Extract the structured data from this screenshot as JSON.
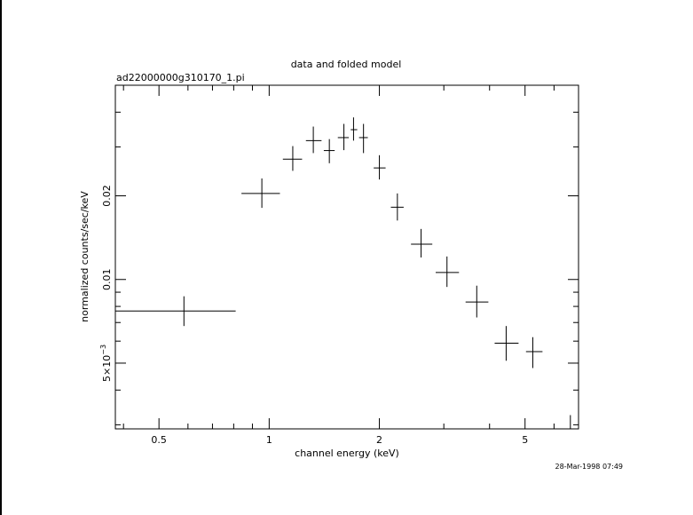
{
  "chart_data": {
    "type": "scatter",
    "title": "data and folded model",
    "subtitle": "ad22000000g310170_1.pi",
    "xlabel": "channel energy (keV)",
    "ylabel": "normalized counts/sec/keV",
    "x_scale": "log",
    "y_scale": "log",
    "xlim": [
      0.38,
      7.0
    ],
    "ylim": [
      0.0029,
      0.05
    ],
    "x_ticks": [
      {
        "value": 0.5,
        "label": "0.5"
      },
      {
        "value": 1,
        "label": "1"
      },
      {
        "value": 2,
        "label": "2"
      },
      {
        "value": 5,
        "label": "5"
      }
    ],
    "y_ticks": [
      {
        "value": 0.005,
        "label_base": "5×10",
        "label_exp": "−3"
      },
      {
        "value": 0.01,
        "label": "0.01"
      },
      {
        "value": 0.02,
        "label": "0.02"
      }
    ],
    "grid": false,
    "legend": "none",
    "series": [
      {
        "points": [
          {
            "x": 0.585,
            "xlo": 0.38,
            "xhi": 0.81,
            "y": 0.0077,
            "ylo": 0.0068,
            "yhi": 0.0087
          },
          {
            "x": 0.955,
            "xlo": 0.84,
            "xhi": 1.07,
            "y": 0.0204,
            "ylo": 0.0181,
            "yhi": 0.0231
          },
          {
            "x": 1.16,
            "xlo": 1.09,
            "xhi": 1.23,
            "y": 0.0271,
            "ylo": 0.0246,
            "yhi": 0.0302
          },
          {
            "x": 1.32,
            "xlo": 1.26,
            "xhi": 1.39,
            "y": 0.0316,
            "ylo": 0.0285,
            "yhi": 0.0355
          },
          {
            "x": 1.46,
            "xlo": 1.41,
            "xhi": 1.51,
            "y": 0.0291,
            "ylo": 0.0262,
            "yhi": 0.032
          },
          {
            "x": 1.6,
            "xlo": 1.54,
            "xhi": 1.65,
            "y": 0.0324,
            "ylo": 0.0292,
            "yhi": 0.0363
          },
          {
            "x": 1.7,
            "xlo": 1.67,
            "xhi": 1.74,
            "y": 0.0346,
            "ylo": 0.0316,
            "yhi": 0.0383
          },
          {
            "x": 1.81,
            "xlo": 1.76,
            "xhi": 1.86,
            "y": 0.0324,
            "ylo": 0.0285,
            "yhi": 0.0363
          },
          {
            "x": 2.0,
            "xlo": 1.93,
            "xhi": 2.08,
            "y": 0.0252,
            "ylo": 0.0229,
            "yhi": 0.028
          },
          {
            "x": 2.24,
            "xlo": 2.15,
            "xhi": 2.33,
            "y": 0.0182,
            "ylo": 0.0163,
            "yhi": 0.0204
          },
          {
            "x": 2.6,
            "xlo": 2.44,
            "xhi": 2.79,
            "y": 0.0134,
            "ylo": 0.012,
            "yhi": 0.0152
          },
          {
            "x": 3.06,
            "xlo": 2.85,
            "xhi": 3.3,
            "y": 0.0106,
            "ylo": 0.0094,
            "yhi": 0.0121
          },
          {
            "x": 3.69,
            "xlo": 3.44,
            "xhi": 3.97,
            "y": 0.0083,
            "ylo": 0.0073,
            "yhi": 0.0095
          },
          {
            "x": 4.44,
            "xlo": 4.13,
            "xhi": 4.8,
            "y": 0.0059,
            "ylo": 0.0051,
            "yhi": 0.0068
          },
          {
            "x": 5.25,
            "xlo": 5.03,
            "xhi": 5.58,
            "y": 0.0055,
            "ylo": 0.0048,
            "yhi": 0.0062
          },
          {
            "x": 6.65,
            "xlo": 6.25,
            "xhi": 7.0,
            "y": 0.0029,
            "ylo": 0.00258,
            "yhi": 0.00325
          }
        ]
      }
    ]
  },
  "timestamp": "28-Mar-1998 07:49"
}
